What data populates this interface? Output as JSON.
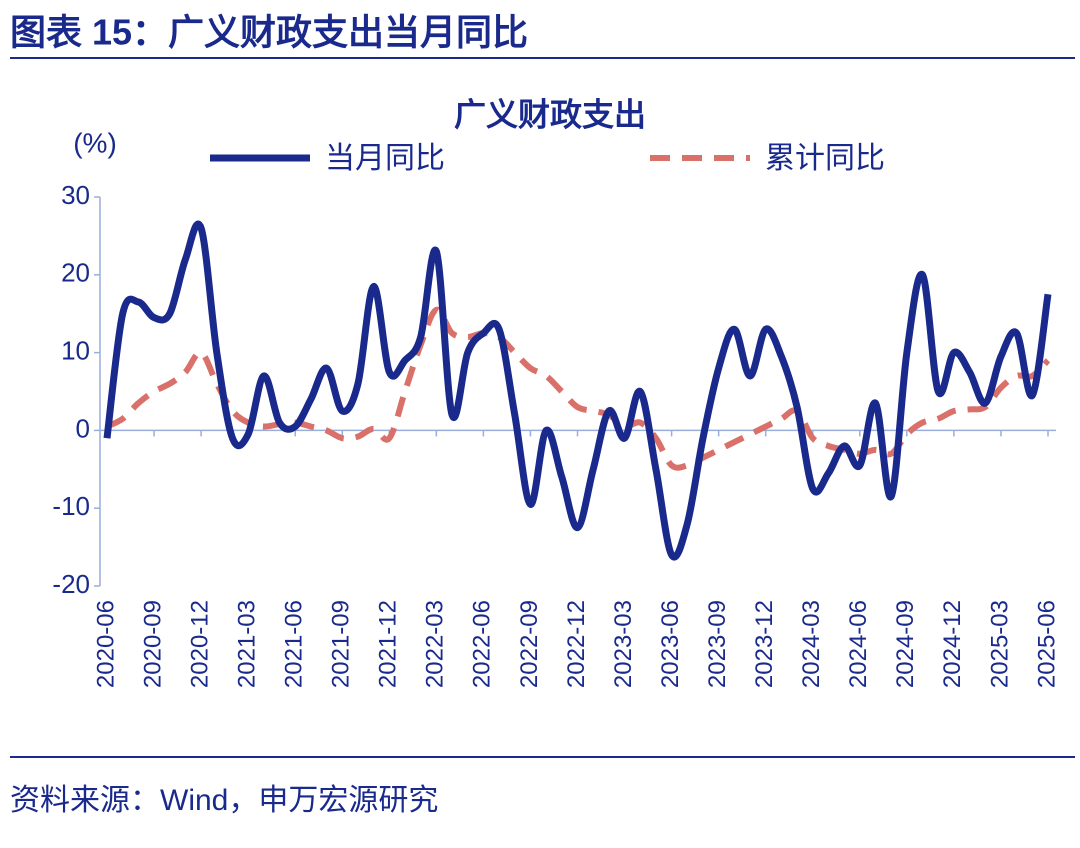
{
  "header": {
    "title": "图表 15：广义财政支出当月同比"
  },
  "chart_data": {
    "type": "line",
    "title": "广义财政支出",
    "y_label": "(%)",
    "categories": [
      "2020-06",
      null,
      null,
      "2020-09",
      null,
      null,
      "2020-12",
      null,
      null,
      "2021-03",
      null,
      null,
      "2021-06",
      null,
      null,
      "2021-09",
      null,
      null,
      "2021-12",
      null,
      null,
      "2022-03",
      null,
      null,
      "2022-06",
      null,
      null,
      "2022-09",
      null,
      null,
      "2022-12",
      null,
      null,
      "2023-03",
      null,
      null,
      "2023-06",
      null,
      null,
      "2023-09",
      null,
      null,
      "2023-12",
      null,
      null,
      "2024-03",
      null,
      null,
      "2024-06",
      null,
      null,
      "2024-09",
      null,
      null,
      "2024-12",
      null,
      null,
      "2025-03",
      null,
      null,
      "2025-06"
    ],
    "series": [
      {
        "name": "当月同比",
        "color": "#1a2a8c",
        "dash": false,
        "values": [
          -1,
          15,
          16.5,
          14.5,
          15,
          22,
          26,
          10,
          -1,
          -0.5,
          7,
          1,
          0.5,
          4,
          8,
          2.5,
          6,
          18.5,
          7.5,
          9,
          12,
          23,
          2,
          10,
          12.5,
          13,
          2,
          -9.5,
          0,
          -6,
          -12.5,
          -5,
          2.5,
          -1,
          5,
          -5,
          -16,
          -12,
          -1,
          8,
          13,
          7,
          13,
          9.5,
          3,
          -7.5,
          -5.5,
          -2,
          -4.5,
          3.5,
          -8.5,
          10,
          20,
          5,
          10,
          7.5,
          3.5,
          9.5,
          12.5,
          4.5,
          17.5
        ]
      },
      {
        "name": "累计同比",
        "color": "#d9706a",
        "dash": true,
        "values": [
          0.5,
          1.5,
          3.5,
          5,
          6,
          7.5,
          10,
          6,
          2.5,
          1,
          0.5,
          0.8,
          1,
          0.5,
          0,
          -1,
          -0.8,
          0.2,
          -1,
          5,
          11,
          15.5,
          12.5,
          12,
          12.5,
          12,
          10,
          8,
          7,
          5,
          3,
          2.5,
          2,
          0.5,
          1,
          -1,
          -4.5,
          -4.5,
          -3.5,
          -2.5,
          -1.5,
          -0.5,
          0.5,
          1.5,
          2.5,
          -1,
          -2,
          -2.5,
          -3,
          -2.5,
          -3,
          -0.5,
          1,
          1.5,
          2.5,
          2.7,
          3,
          5.5,
          7,
          7,
          9
        ]
      }
    ],
    "ylim": [
      -20,
      30
    ],
    "yticks": [
      -20,
      -10,
      0,
      10,
      20,
      30
    ],
    "grid": false
  },
  "footer": {
    "source": "资料来源：Wind，申万宏源研究"
  }
}
